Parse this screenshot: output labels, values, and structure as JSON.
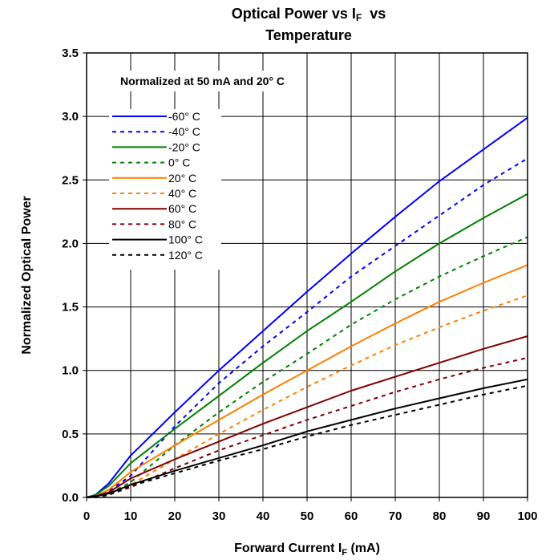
{
  "chart_data": {
    "type": "line",
    "title_main": "Optical Power vs I",
    "title_sub": "F",
    "title_tail": "  vs",
    "title_line2": "Temperature",
    "annotation": "Normalized at 50 mA and 20° C",
    "xlabel": "Forward Current I",
    "xlabel_sub": "F",
    "xlabel_tail": " (mA)",
    "ylabel": "Normalized Optical Power",
    "xlim": [
      0,
      100
    ],
    "ylim": [
      0,
      3.5
    ],
    "x_ticks": [
      0,
      10,
      20,
      30,
      40,
      50,
      60,
      70,
      80,
      90,
      100
    ],
    "x_tick_labels": [
      "0",
      "10",
      "20",
      "30",
      "40",
      "50",
      "60",
      "70",
      "80",
      "90",
      "100"
    ],
    "y_ticks": [
      0,
      0.5,
      1.0,
      1.5,
      2.0,
      2.5,
      3.0,
      3.5
    ],
    "y_tick_labels": [
      "0.0",
      "0.5",
      "1.0",
      "1.5",
      "2.0",
      "2.5",
      "3.0",
      "3.5"
    ],
    "grid": true,
    "legend_position": "top-left",
    "x": [
      0,
      2,
      5,
      10,
      20,
      30,
      40,
      50,
      60,
      70,
      80,
      90,
      100
    ],
    "series": [
      {
        "name": "-60° C",
        "color": "#0000ff",
        "dashed": false,
        "values": [
          0,
          0.02,
          0.11,
          0.33,
          0.67,
          1.0,
          1.31,
          1.62,
          1.92,
          2.21,
          2.49,
          2.74,
          2.99
        ]
      },
      {
        "name": "-40° C",
        "color": "#0000ff",
        "dashed": true,
        "values": [
          0,
          0.01,
          0.05,
          0.17,
          0.56,
          0.9,
          1.19,
          1.46,
          1.74,
          1.98,
          2.22,
          2.46,
          2.67
        ]
      },
      {
        "name": "-20° C",
        "color": "#008000",
        "dashed": false,
        "values": [
          0,
          0.02,
          0.09,
          0.27,
          0.54,
          0.8,
          1.06,
          1.31,
          1.54,
          1.78,
          2.0,
          2.2,
          2.39
        ]
      },
      {
        "name": "0° C",
        "color": "#008000",
        "dashed": true,
        "values": [
          0,
          0.01,
          0.03,
          0.12,
          0.41,
          0.67,
          0.91,
          1.13,
          1.36,
          1.56,
          1.74,
          1.9,
          2.05
        ]
      },
      {
        "name": "20° C",
        "color": "#ff7f00",
        "dashed": false,
        "values": [
          0,
          0.01,
          0.06,
          0.2,
          0.41,
          0.61,
          0.81,
          1.0,
          1.19,
          1.37,
          1.54,
          1.69,
          1.83
        ]
      },
      {
        "name": "40° C",
        "color": "#ff7f00",
        "dashed": true,
        "values": [
          0,
          0.0,
          0.02,
          0.1,
          0.3,
          0.5,
          0.69,
          0.87,
          1.04,
          1.2,
          1.34,
          1.47,
          1.59
        ]
      },
      {
        "name": "60° C",
        "color": "#800000",
        "dashed": false,
        "values": [
          0,
          0.01,
          0.04,
          0.15,
          0.3,
          0.44,
          0.58,
          0.71,
          0.84,
          0.95,
          1.06,
          1.17,
          1.27
        ]
      },
      {
        "name": "80° C",
        "color": "#800000",
        "dashed": true,
        "values": [
          0,
          0.0,
          0.02,
          0.08,
          0.23,
          0.37,
          0.49,
          0.61,
          0.72,
          0.83,
          0.93,
          1.02,
          1.1
        ]
      },
      {
        "name": "100° C",
        "color": "#000000",
        "dashed": false,
        "values": [
          0,
          0.01,
          0.03,
          0.1,
          0.21,
          0.31,
          0.41,
          0.52,
          0.61,
          0.7,
          0.78,
          0.86,
          0.93
        ]
      },
      {
        "name": "120° C",
        "color": "#000000",
        "dashed": true,
        "values": [
          0,
          0.0,
          0.02,
          0.09,
          0.19,
          0.29,
          0.38,
          0.48,
          0.57,
          0.65,
          0.73,
          0.81,
          0.88
        ]
      }
    ]
  }
}
